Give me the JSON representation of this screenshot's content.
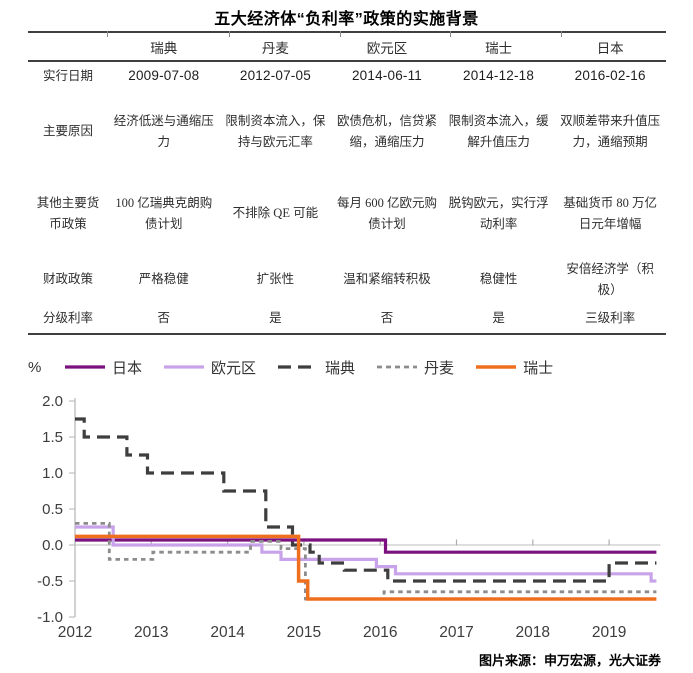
{
  "page": {
    "title": "五大经济体“负利率”政策的实施背景",
    "unit_label": "%",
    "source": "图片来源：申万宏源，光大证券"
  },
  "table": {
    "columns": [
      "",
      "瑞典",
      "丹麦",
      "欧元区",
      "瑞士",
      "日本"
    ],
    "rows": [
      {
        "label": "实行日期",
        "style": "date",
        "cells": [
          "2009-07-08",
          "2012-07-05",
          "2014-06-11",
          "2014-12-18",
          "2016-02-16"
        ]
      },
      {
        "label": "主要原因",
        "style": "text",
        "cells": [
          "经济低迷与通缩压力",
          "限制资本流入，保持与欧元汇率",
          "欧债危机，信贷紧缩，通缩压力",
          "限制资本流入，缓解升值压力",
          "双顺差带来升值压力，通缩预期"
        ]
      },
      {
        "label": "其他主要货币政策",
        "style": "text",
        "cells": [
          "100 亿瑞典克朗购债计划",
          "不排除 QE 可能",
          "每月 600 亿欧元购债计划",
          "脱钩欧元，实行浮动利率",
          "基础货币 80 万亿日元年增幅"
        ]
      },
      {
        "label": "财政政策",
        "style": "text",
        "cells": [
          "严格稳健",
          "扩张性",
          "温和紧缩转积极",
          "稳健性",
          "安倍经济学（积极）"
        ]
      },
      {
        "label": "分级利率",
        "style": "text",
        "cells": [
          "否",
          "是",
          "否",
          "是",
          "三级利率"
        ]
      }
    ]
  },
  "chart_data": {
    "type": "line",
    "step": true,
    "title": "",
    "xlabel": "",
    "ylabel": "%",
    "grid": "zero-line-only",
    "legend_position": "top",
    "ylim": [
      -1.0,
      2.0
    ],
    "y_ticks": [
      2.0,
      1.5,
      1.0,
      0.5,
      0.0,
      -0.5,
      -1.0
    ],
    "y_tick_labels": [
      "2.0",
      "1.5",
      "1.0",
      "0.5",
      "0.0",
      "-0.5",
      "-1.0"
    ],
    "x_ticks": [
      2012,
      2013,
      2014,
      2015,
      2016,
      2017,
      2018,
      2019
    ],
    "x_tick_labels": [
      "2012",
      "2013",
      "2014",
      "2015",
      "2016",
      "2017",
      "2018",
      "2019"
    ],
    "x_range": [
      2012.0,
      2019.62
    ],
    "series": [
      {
        "name": "日本",
        "color": "#7A117E",
        "dash": "solid",
        "width": 3.2,
        "points": [
          [
            2012.0,
            0.07
          ],
          [
            2016.07,
            -0.1
          ]
        ]
      },
      {
        "name": "欧元区",
        "color": "#C8A3E9",
        "dash": "solid",
        "width": 3.2,
        "points": [
          [
            2012.0,
            0.25
          ],
          [
            2012.5,
            0.0
          ],
          [
            2014.45,
            -0.1
          ],
          [
            2014.7,
            -0.2
          ],
          [
            2015.95,
            -0.3
          ],
          [
            2016.2,
            -0.4
          ],
          [
            2019.55,
            -0.5
          ]
        ]
      },
      {
        "name": "瑞典",
        "color": "#3E3E3E",
        "dash": "long-dash",
        "width": 3.2,
        "points": [
          [
            2012.0,
            1.75
          ],
          [
            2012.12,
            1.5
          ],
          [
            2012.68,
            1.25
          ],
          [
            2012.95,
            1.0
          ],
          [
            2013.95,
            0.75
          ],
          [
            2014.5,
            0.25
          ],
          [
            2014.85,
            0.0
          ],
          [
            2015.08,
            -0.1
          ],
          [
            2015.2,
            -0.25
          ],
          [
            2015.53,
            -0.35
          ],
          [
            2016.1,
            -0.5
          ],
          [
            2019.0,
            -0.25
          ]
        ]
      },
      {
        "name": "丹麦",
        "color": "#8C8C8C",
        "dash": "short-dash",
        "width": 2.8,
        "points": [
          [
            2012.0,
            0.3
          ],
          [
            2012.45,
            -0.2
          ],
          [
            2013.02,
            -0.1
          ],
          [
            2014.3,
            0.05
          ],
          [
            2014.7,
            -0.05
          ],
          [
            2015.02,
            -0.75
          ],
          [
            2016.05,
            -0.65
          ]
        ]
      },
      {
        "name": "瑞士",
        "color": "#EE6F1E",
        "dash": "solid",
        "width": 3.5,
        "points": [
          [
            2012.0,
            0.12
          ],
          [
            2014.93,
            -0.5
          ],
          [
            2015.05,
            -0.75
          ]
        ]
      }
    ]
  }
}
